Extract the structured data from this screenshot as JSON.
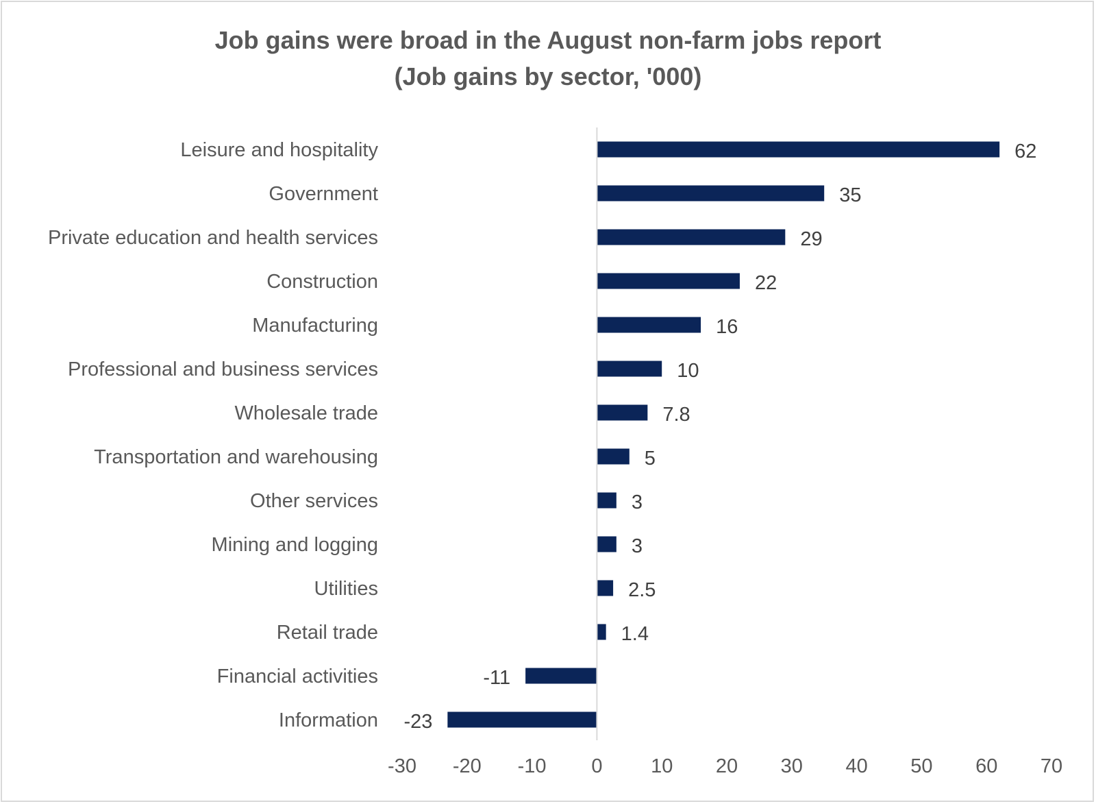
{
  "chart_data": {
    "type": "bar",
    "orientation": "horizontal",
    "title": "Job gains were broad in the August non-farm jobs report",
    "subtitle": "(Job gains by sector, '000)",
    "xlabel": "",
    "ylabel": "",
    "categories": [
      "Leisure and hospitality",
      "Government",
      "Private education and health services",
      "Construction",
      "Manufacturing",
      "Professional and business services",
      "Wholesale trade",
      "Transportation and warehousing",
      "Other services",
      "Mining and logging",
      "Utilities",
      "Retail trade",
      "Financial activities",
      "Information"
    ],
    "values": [
      62,
      35,
      29,
      22,
      16,
      10,
      7.8,
      5,
      3,
      3,
      2.5,
      1.4,
      -11,
      -23
    ],
    "data_labels": [
      "62",
      "35",
      "29",
      "22",
      "16",
      "10",
      "7.8",
      "5",
      "3",
      "3",
      "2.5",
      "1.4",
      "-11",
      "-23"
    ],
    "xlim": [
      -30,
      70
    ],
    "xticks": [
      -30,
      -20,
      -10,
      0,
      10,
      20,
      30,
      40,
      50,
      60,
      70
    ],
    "xtick_labels": [
      "-30",
      "-20",
      "-10",
      "0",
      "10",
      "20",
      "30",
      "40",
      "50",
      "60",
      "70"
    ],
    "grid": false,
    "legend": "none",
    "colors": {
      "bar": "#0b2558",
      "axis": "#d9d9d9",
      "text": "#595959",
      "data_label": "#404040",
      "border": "#d9d9d9"
    }
  }
}
